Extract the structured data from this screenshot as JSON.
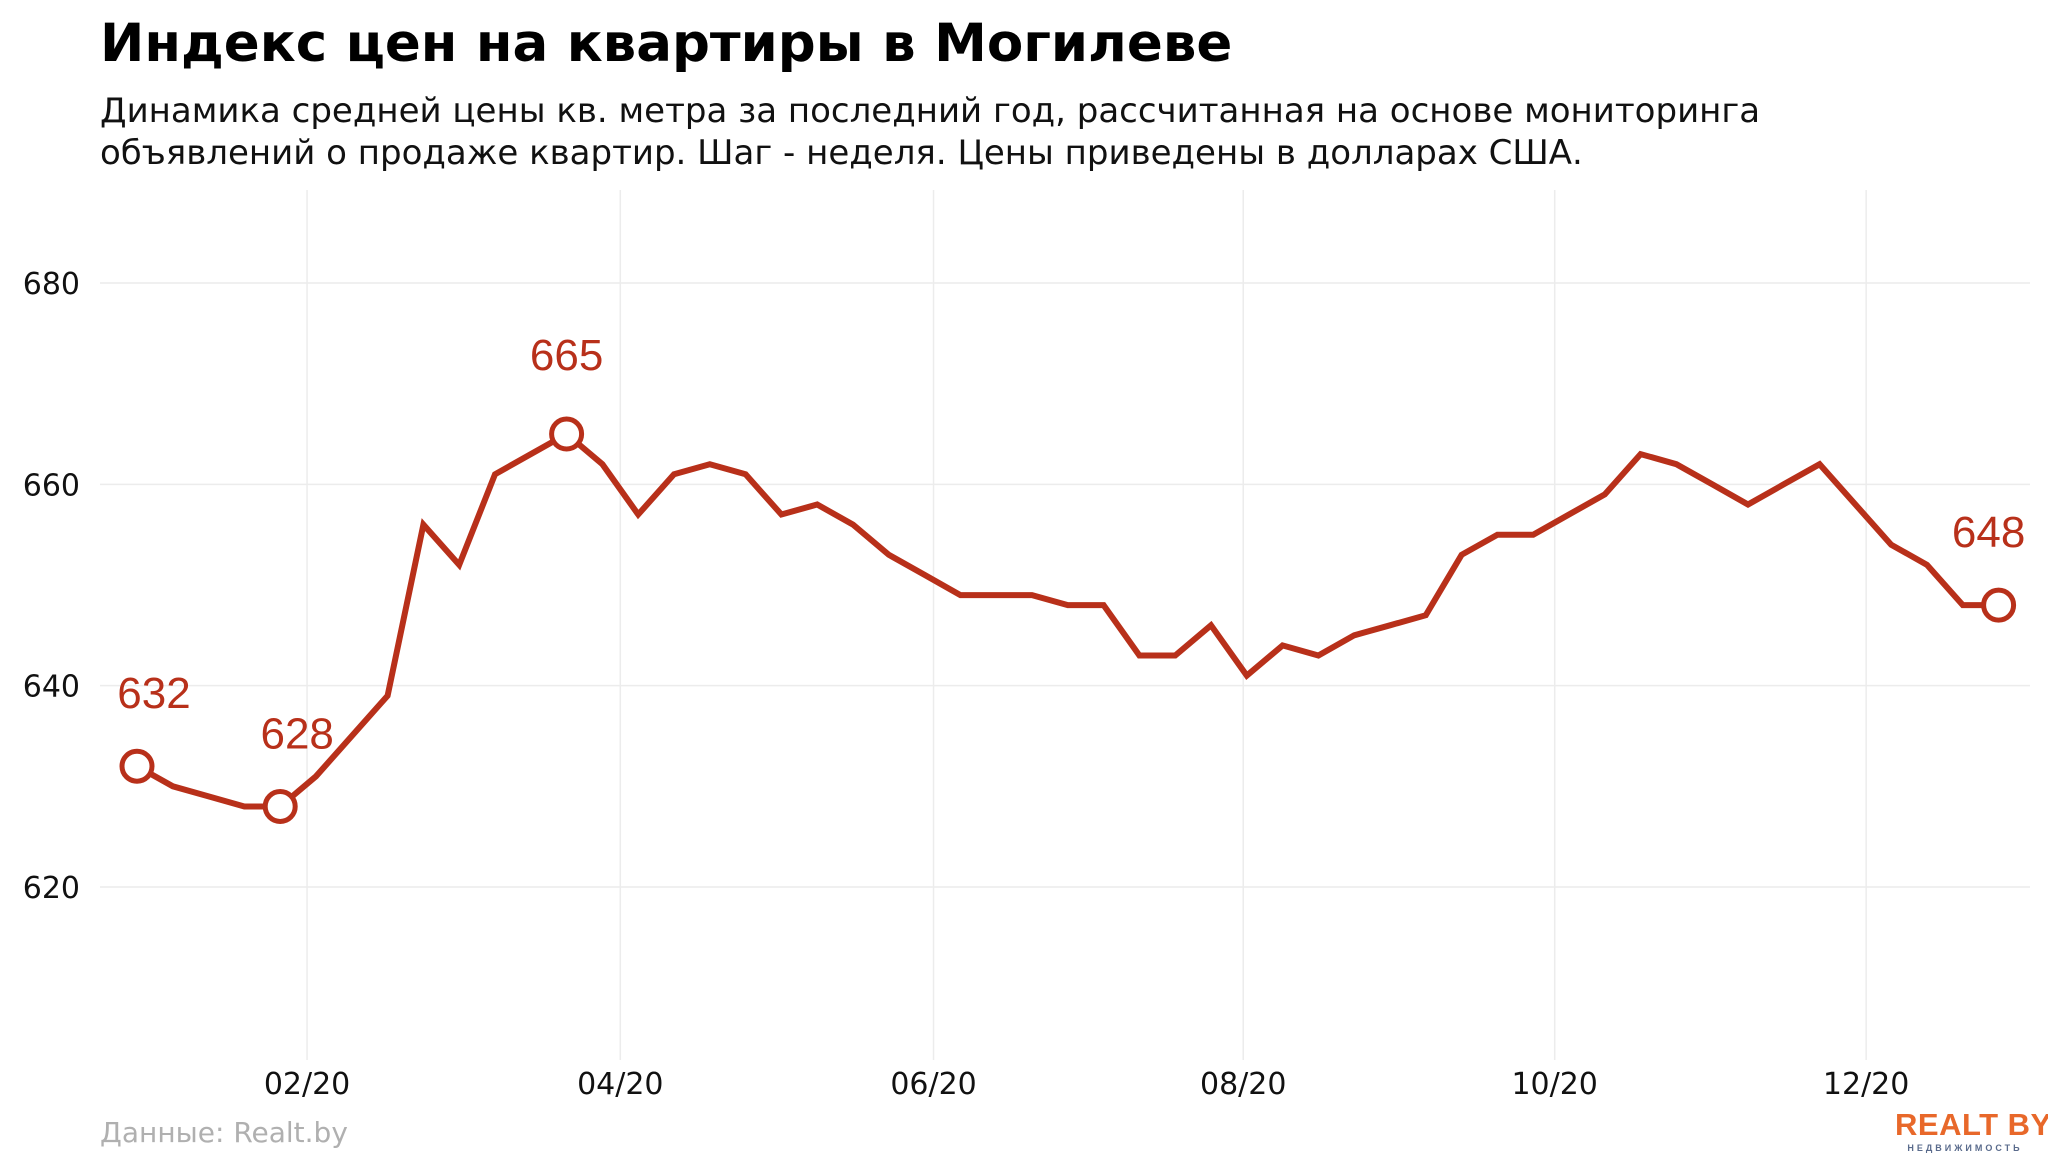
{
  "header": {
    "title": "Индекс цен на квартиры в Могилеве",
    "subtitle_lines": [
      "Динамика средней цены кв. метра за последний год, рассчитанная на основе мониторинга",
      "объявлений о продаже квартир. Шаг - неделя. Цены приведены в долларах США."
    ]
  },
  "footer": {
    "source": "Данные: Realt.by",
    "logo_text": "REALT BY",
    "logo_subtext": "НЕДВИЖИМОСТЬ"
  },
  "colors": {
    "line": "#b8301a",
    "grid": "#ececec",
    "logo": "#e8682a"
  },
  "chart_data": {
    "type": "line",
    "title": "Индекс цен на квартиры в Могилеве",
    "x_unit": "week",
    "x_ticks": [
      "02/20",
      "04/20",
      "06/20",
      "08/20",
      "10/20",
      "12/20"
    ],
    "x_tick_weeks": [
      4.75,
      13.5,
      22.25,
      30.9,
      39.6,
      48.3
    ],
    "y_ticks": [
      620,
      640,
      660,
      680
    ],
    "ylim": [
      604,
      690
    ],
    "grid": true,
    "legend": "none",
    "series": [
      {
        "values": [
          632,
          630,
          629,
          628,
          628,
          631,
          635,
          639,
          656,
          652,
          661,
          663,
          665,
          662,
          657,
          661,
          662,
          661,
          657,
          658,
          656,
          653,
          651,
          649,
          649,
          649,
          648,
          648,
          643,
          643,
          646,
          641,
          644,
          643,
          645,
          646,
          647,
          653,
          655,
          655,
          657,
          659,
          663,
          662,
          660,
          658,
          660,
          662,
          658,
          654,
          652,
          648,
          648
        ]
      }
    ],
    "annotations": [
      {
        "index": 0,
        "label": "632"
      },
      {
        "index": 4,
        "label": "628"
      },
      {
        "index": 12,
        "label": "665"
      },
      {
        "index": 52,
        "label": "648"
      }
    ]
  }
}
